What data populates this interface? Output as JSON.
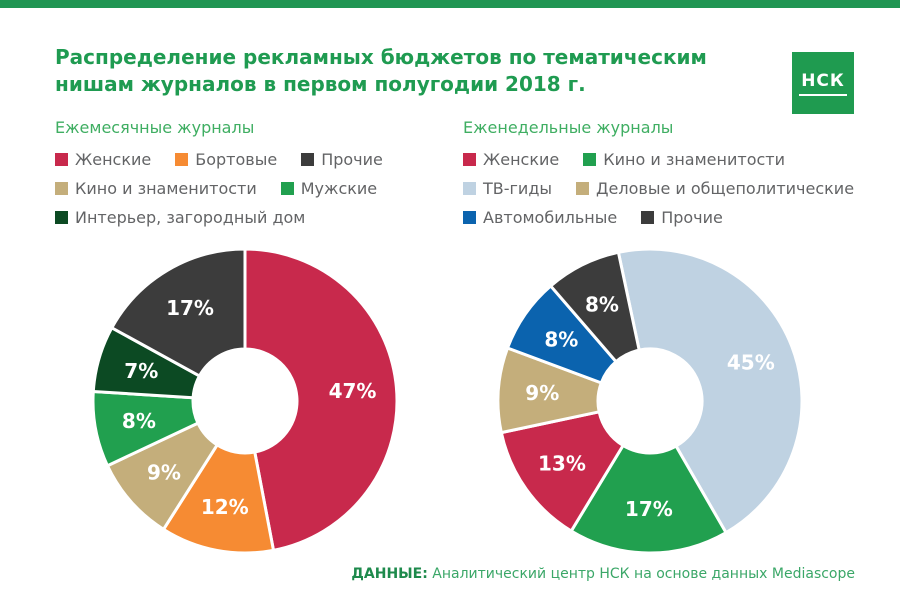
{
  "header": {
    "title_lines": [
      "Распределение рекламных бюджетов по тематическим",
      "нишам журналов в первом полугодии 2018 г."
    ]
  },
  "logo": {
    "text": "НСК"
  },
  "footer": {
    "label": "ДАННЫЕ:",
    "text": "Аналитический центр НСК на основе данных Mediascope"
  },
  "colors": {
    "accent_strip": "#219653",
    "title_green": "#1F9B51",
    "subtitle_green": "#3FAE62",
    "logo_bg": "#1F9B50",
    "legend_text": "#636466",
    "footer_label": "#1E8A4C",
    "footer_text": "#3BA768",
    "slice_separator": "#ffffff"
  },
  "chart_data": [
    {
      "type": "pie",
      "donut": true,
      "title": "Ежемесячные журналы",
      "start_angle_deg": 0,
      "units": "%",
      "slices": [
        {
          "name": "Женские",
          "value": 47,
          "label": "47%",
          "color": "#C8294C"
        },
        {
          "name": "Бортовые",
          "value": 12,
          "label": "12%",
          "color": "#F68B33"
        },
        {
          "name": "Кино и знаменитости",
          "value": 9,
          "label": "9%",
          "color": "#C4AE7B"
        },
        {
          "name": "Мужские",
          "value": 8,
          "label": "8%",
          "color": "#21A04F"
        },
        {
          "name": "Интерьер, загородный дом",
          "value": 7,
          "label": "7%",
          "color": "#0C4A23"
        },
        {
          "name": "Прочие",
          "value": 17,
          "label": "17%",
          "color": "#3C3C3C"
        }
      ],
      "legend_rows": [
        [
          0,
          1,
          5
        ],
        [
          2,
          3
        ],
        [
          4
        ]
      ],
      "legend_position": "top"
    },
    {
      "type": "pie",
      "donut": true,
      "title": "Еженедельные журналы",
      "start_angle_deg": -12,
      "units": "%",
      "slices": [
        {
          "name": "ТВ-гиды",
          "value": 45,
          "label": "45%",
          "color": "#BFD2E2"
        },
        {
          "name": "Кино и знаменитости",
          "value": 17,
          "label": "17%",
          "color": "#21A04F"
        },
        {
          "name": "Женские",
          "value": 13,
          "label": "13%",
          "color": "#C8294C"
        },
        {
          "name": "Деловые и общеполитические",
          "value": 9,
          "label": "9%",
          "color": "#C4AE7B"
        },
        {
          "name": "Автомобильные",
          "value": 8,
          "label": "8%",
          "color": "#0B63AE"
        },
        {
          "name": "Прочие",
          "value": 8,
          "label": "8%",
          "color": "#3C3C3C"
        }
      ],
      "legend_rows": [
        [
          2,
          1
        ],
        [
          0,
          3
        ],
        [
          4,
          5
        ]
      ],
      "legend_position": "top"
    }
  ]
}
